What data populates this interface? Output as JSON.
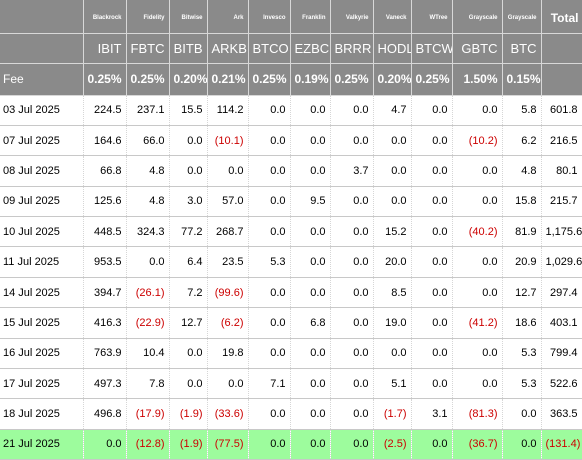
{
  "header": {
    "issuers": [
      "Blackrock",
      "Fidelity",
      "Bitwise",
      "Ark",
      "Invesco",
      "Franklin",
      "Valkyrie",
      "Vaneck",
      "WTree",
      "Grayscale",
      "Grayscale"
    ],
    "total_label": "Total",
    "tickers": [
      "IBIT",
      "FBTC",
      "BITB",
      "ARKB",
      "BTCO",
      "EZBC",
      "BRRR",
      "HODL",
      "BTCW",
      "GBTC",
      "BTC"
    ],
    "fee_label": "Fee",
    "fees": [
      "0.25%",
      "0.25%",
      "0.20%",
      "0.21%",
      "0.25%",
      "0.19%",
      "0.25%",
      "0.20%",
      "0.25%",
      "1.50%",
      "0.15%"
    ]
  },
  "rows": [
    {
      "date": "03 Jul 2025",
      "values": [
        "224.5",
        "237.1",
        "15.5",
        "114.2",
        "0.0",
        "0.0",
        "0.0",
        "4.7",
        "0.0",
        "0.0",
        "5.8"
      ],
      "total": "601.8"
    },
    {
      "date": "07 Jul 2025",
      "values": [
        "164.6",
        "66.0",
        "0.0",
        "(10.1)",
        "0.0",
        "0.0",
        "0.0",
        "0.0",
        "0.0",
        "(10.2)",
        "6.2"
      ],
      "total": "216.5"
    },
    {
      "date": "08 Jul 2025",
      "values": [
        "66.8",
        "4.8",
        "0.0",
        "0.0",
        "0.0",
        "0.0",
        "3.7",
        "0.0",
        "0.0",
        "0.0",
        "4.8"
      ],
      "total": "80.1"
    },
    {
      "date": "09 Jul 2025",
      "values": [
        "125.6",
        "4.8",
        "3.0",
        "57.0",
        "0.0",
        "9.5",
        "0.0",
        "0.0",
        "0.0",
        "0.0",
        "15.8"
      ],
      "total": "215.7"
    },
    {
      "date": "10 Jul 2025",
      "values": [
        "448.5",
        "324.3",
        "77.2",
        "268.7",
        "0.0",
        "0.0",
        "0.0",
        "15.2",
        "0.0",
        "(40.2)",
        "81.9"
      ],
      "total": "1,175.6"
    },
    {
      "date": "11 Jul 2025",
      "values": [
        "953.5",
        "0.0",
        "6.4",
        "23.5",
        "5.3",
        "0.0",
        "0.0",
        "20.0",
        "0.0",
        "0.0",
        "20.9"
      ],
      "total": "1,029.6"
    },
    {
      "date": "14 Jul 2025",
      "values": [
        "394.7",
        "(26.1)",
        "7.2",
        "(99.6)",
        "0.0",
        "0.0",
        "0.0",
        "8.5",
        "0.0",
        "0.0",
        "12.7"
      ],
      "total": "297.4"
    },
    {
      "date": "15 Jul 2025",
      "values": [
        "416.3",
        "(22.9)",
        "12.7",
        "(6.2)",
        "0.0",
        "6.8",
        "0.0",
        "19.0",
        "0.0",
        "(41.2)",
        "18.6"
      ],
      "total": "403.1"
    },
    {
      "date": "16 Jul 2025",
      "values": [
        "763.9",
        "10.4",
        "0.0",
        "19.8",
        "0.0",
        "0.0",
        "0.0",
        "0.0",
        "0.0",
        "0.0",
        "5.3"
      ],
      "total": "799.4"
    },
    {
      "date": "17 Jul 2025",
      "values": [
        "497.3",
        "7.8",
        "0.0",
        "0.0",
        "7.1",
        "0.0",
        "0.0",
        "5.1",
        "0.0",
        "0.0",
        "5.3"
      ],
      "total": "522.6"
    },
    {
      "date": "18 Jul 2025",
      "values": [
        "496.8",
        "(17.9)",
        "(1.9)",
        "(33.6)",
        "0.0",
        "0.0",
        "0.0",
        "(1.7)",
        "3.1",
        "(81.3)",
        "0.0"
      ],
      "total": "363.5"
    },
    {
      "date": "21 Jul 2025",
      "values": [
        "0.0",
        "(12.8)",
        "(1.9)",
        "(77.5)",
        "0.0",
        "0.0",
        "0.0",
        "(2.5)",
        "0.0",
        "(36.7)",
        "0.0"
      ],
      "total": "(131.4)",
      "highlight": true
    }
  ],
  "colors": {
    "header_bg": "#8a8a8a",
    "header_text": "#ffffff",
    "negative": "#cc0000",
    "highlight_row": "#9dfc9d"
  }
}
